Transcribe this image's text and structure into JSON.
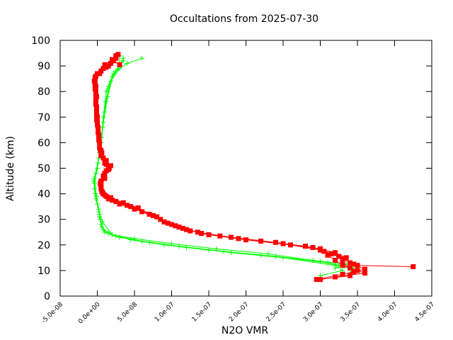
{
  "chart_data": {
    "type": "scatter",
    "title": "Occultations from 2025-07-30",
    "xlabel": "N2O VMR",
    "ylabel": "Altitude (km)",
    "xlim": [
      -5e-08,
      4.5e-07
    ],
    "ylim": [
      0,
      100
    ],
    "x_ticks": [
      -5e-08,
      0,
      5e-08,
      1e-07,
      1.5e-07,
      2e-07,
      2.5e-07,
      3e-07,
      3.5e-07,
      4e-07,
      4.5e-07
    ],
    "x_tick_labels": [
      "-5.0e-08",
      "0.0e+00",
      "5.0e-08",
      "1.0e-07",
      "1.5e-07",
      "2.0e-07",
      "2.5e-07",
      "3.0e-07",
      "3.5e-07",
      "4.0e-07",
      "4.5e-07"
    ],
    "y_ticks": [
      0,
      10,
      20,
      30,
      40,
      50,
      60,
      70,
      80,
      90,
      100
    ],
    "y_tick_labels": [
      "0",
      "10",
      "20",
      "30",
      "40",
      "50",
      "60",
      "70",
      "80",
      "90",
      "100"
    ],
    "grid": false,
    "series": [
      {
        "color": "#00ff00",
        "marker": "plus",
        "profiles": [
          [
            [
              3e-07,
              8
            ],
            [
              3.3e-07,
              10
            ],
            [
              3.2e-07,
              12
            ],
            [
              2.5e-07,
              15
            ],
            [
              1.8e-07,
              17
            ],
            [
              1.2e-07,
              19
            ],
            [
              7e-08,
              21
            ],
            [
              3e-08,
              23
            ],
            [
              1e-08,
              25
            ],
            [
              5e-09,
              28
            ],
            [
              3e-09,
              32
            ],
            [
              -2e-09,
              38
            ],
            [
              -4e-09,
              44
            ],
            [
              0.0,
              50
            ],
            [
              5e-09,
              60
            ],
            [
              8e-09,
              70
            ],
            [
              1.2e-08,
              80
            ],
            [
              2e-08,
              86
            ],
            [
              3e-08,
              90
            ],
            [
              3.5e-08,
              93
            ]
          ],
          [
            [
              3.4e-07,
              9
            ],
            [
              3.45e-07,
              11
            ],
            [
              3.1e-07,
              13
            ],
            [
              2.4e-07,
              15.5
            ],
            [
              1.7e-07,
              17.5
            ],
            [
              1.1e-07,
              19.5
            ],
            [
              6e-08,
              21.5
            ],
            [
              2.5e-08,
              23.5
            ],
            [
              8e-09,
              26
            ],
            [
              4e-09,
              30
            ],
            [
              2e-09,
              34
            ],
            [
              -3e-09,
              40
            ],
            [
              -5e-09,
              45
            ],
            [
              1e-09,
              52
            ],
            [
              6e-09,
              62
            ],
            [
              1e-08,
              72
            ],
            [
              1.5e-08,
              82
            ],
            [
              2.5e-08,
              88
            ],
            [
              4e-08,
              91
            ],
            [
              6e-08,
              93
            ]
          ],
          [
            [
              3.2e-07,
              11
            ],
            [
              3.35e-07,
              12.5
            ],
            [
              2.9e-07,
              14
            ],
            [
              2.2e-07,
              16
            ],
            [
              1.5e-07,
              18
            ],
            [
              9e-08,
              20
            ],
            [
              4.5e-08,
              22
            ],
            [
              1.5e-08,
              24.5
            ],
            [
              6e-09,
              27
            ],
            [
              3e-09,
              31
            ],
            [
              0.0,
              36
            ],
            [
              -4e-09,
              42
            ],
            [
              -2e-09,
              48
            ],
            [
              3e-09,
              56
            ],
            [
              7e-09,
              66
            ],
            [
              1.1e-08,
              76
            ],
            [
              1.8e-08,
              84
            ],
            [
              3e-08,
              89
            ],
            [
              3e-08,
              94
            ]
          ],
          [
            [
              3.5e-07,
              10
            ],
            [
              3.25e-07,
              12
            ],
            [
              3e-07,
              13.5
            ],
            [
              2.3e-07,
              16.5
            ],
            [
              1.6e-07,
              18.5
            ],
            [
              1e-07,
              20.5
            ],
            [
              5e-08,
              22.5
            ],
            [
              2e-08,
              24
            ],
            [
              7e-09,
              29
            ],
            [
              2e-09,
              33
            ],
            [
              -1e-09,
              39
            ],
            [
              -4e-09,
              46
            ],
            [
              2e-09,
              54
            ],
            [
              8e-09,
              68
            ],
            [
              1.4e-08,
              78
            ],
            [
              2.2e-08,
              87
            ],
            [
              3.5e-08,
              92
            ]
          ]
        ]
      },
      {
        "color": "#ff0000",
        "marker": "square",
        "profiles": [
          [
            [
              3e-07,
              6.5
            ],
            [
              3.4e-07,
              8
            ],
            [
              3.5e-07,
              10
            ],
            [
              3.3e-07,
              12
            ],
            [
              3.2e-07,
              14
            ],
            [
              3.1e-07,
              16
            ],
            [
              3e-07,
              18
            ],
            [
              2.6e-07,
              20
            ],
            [
              2e-07,
              22
            ],
            [
              1.5e-07,
              24
            ],
            [
              1.2e-07,
              26
            ],
            [
              1e-07,
              28
            ],
            [
              8e-08,
              31
            ],
            [
              5e-08,
              34
            ],
            [
              3e-08,
              36
            ],
            [
              1.5e-08,
              38
            ],
            [
              8e-09,
              40
            ],
            [
              5e-09,
              42
            ],
            [
              5e-09,
              45
            ],
            [
              1e-08,
              48
            ],
            [
              1.5e-08,
              50
            ],
            [
              1e-08,
              52
            ],
            [
              5e-09,
              55
            ],
            [
              3e-09,
              58
            ],
            [
              2e-09,
              62
            ],
            [
              1e-09,
              66
            ],
            [
              0.0,
              70
            ],
            [
              -1e-09,
              74
            ],
            [
              -1e-09,
              78
            ],
            [
              -2e-09,
              82
            ],
            [
              -3e-09,
              85
            ],
            [
              5e-09,
              88
            ],
            [
              1.5e-08,
              90
            ],
            [
              2e-08,
              92
            ],
            [
              2.5e-08,
              94
            ]
          ],
          [
            [
              3.2e-07,
              7.5
            ],
            [
              3.6e-07,
              9
            ],
            [
              3.4e-07,
              11
            ],
            [
              3.3e-07,
              13
            ],
            [
              3.35e-07,
              15
            ],
            [
              3.2e-07,
              17
            ],
            [
              2.9e-07,
              19
            ],
            [
              2.4e-07,
              21
            ],
            [
              1.8e-07,
              23
            ],
            [
              1.35e-07,
              25
            ],
            [
              1.1e-07,
              27
            ],
            [
              9e-08,
              29
            ],
            [
              7e-08,
              32
            ],
            [
              4.5e-08,
              35
            ],
            [
              2.5e-08,
              37
            ],
            [
              1.2e-08,
              39
            ],
            [
              6e-09,
              41
            ],
            [
              4e-09,
              44
            ],
            [
              8e-09,
              47
            ],
            [
              1.2e-08,
              49
            ],
            [
              1.8e-08,
              51
            ],
            [
              1.2e-08,
              53
            ],
            [
              6e-09,
              56
            ],
            [
              3e-09,
              60
            ],
            [
              1e-09,
              64
            ],
            [
              0.0,
              68
            ],
            [
              -1e-09,
              72
            ],
            [
              -2e-09,
              76
            ],
            [
              -2e-09,
              80
            ],
            [
              -4e-09,
              84
            ],
            [
              -2e-09,
              86
            ],
            [
              8e-09,
              89
            ],
            [
              1.8e-08,
              91
            ],
            [
              2.5e-08,
              93
            ]
          ],
          [
            [
              4.25e-07,
              11.5
            ],
            [
              3.5e-07,
              12
            ],
            [
              3.4e-07,
              13
            ],
            [
              3.25e-07,
              15.5
            ],
            [
              3.05e-07,
              17.5
            ],
            [
              2.8e-07,
              19.5
            ],
            [
              2.2e-07,
              21.5
            ],
            [
              1.65e-07,
              23.5
            ],
            [
              1.25e-07,
              25.5
            ],
            [
              1.05e-07,
              27.5
            ],
            [
              8.5e-08,
              30
            ],
            [
              6e-08,
              33
            ],
            [
              4e-08,
              35.5
            ],
            [
              2e-08,
              37.5
            ],
            [
              1e-08,
              39.5
            ],
            [
              5e-09,
              43
            ],
            [
              1e-08,
              46
            ],
            [
              1.5e-08,
              49.5
            ],
            [
              1.2e-08,
              51.5
            ],
            [
              8e-09,
              54
            ],
            [
              4e-09,
              57
            ],
            [
              2e-09,
              61
            ],
            [
              1e-09,
              65
            ],
            [
              -1e-09,
              69
            ],
            [
              -1e-09,
              73
            ],
            [
              -2e-09,
              77
            ],
            [
              -3e-09,
              81
            ],
            [
              -3e-09,
              85.5
            ],
            [
              3e-09,
              87
            ],
            [
              1.2e-08,
              89.5
            ],
            [
              2.2e-08,
              92
            ],
            [
              3e-08,
              90.5
            ]
          ],
          [
            [
              2.95e-07,
              6.5
            ],
            [
              3.3e-07,
              8.5
            ],
            [
              3.45e-07,
              9.5
            ],
            [
              3.6e-07,
              10.5
            ],
            [
              3.45e-07,
              12.5
            ],
            [
              3.3e-07,
              14.5
            ],
            [
              3.15e-07,
              16.5
            ],
            [
              3e-07,
              18.5
            ],
            [
              2.5e-07,
              20.5
            ],
            [
              1.9e-07,
              22.5
            ],
            [
              1.4e-07,
              24.5
            ],
            [
              1.15e-07,
              26.5
            ],
            [
              9.5e-08,
              28.5
            ],
            [
              7.5e-08,
              31.5
            ],
            [
              5.5e-08,
              34.5
            ],
            [
              3.5e-08,
              36.5
            ],
            [
              1.8e-08,
              38.5
            ],
            [
              7e-09,
              40.5
            ],
            [
              5e-09,
              43.5
            ],
            [
              9e-09,
              46.5
            ],
            [
              1.6e-08,
              50
            ],
            [
              1e-08,
              52.5
            ],
            [
              5e-09,
              57
            ],
            [
              2e-09,
              63
            ],
            [
              0.0,
              67
            ],
            [
              -1e-09,
              71
            ],
            [
              -2e-09,
              75
            ],
            [
              -2e-09,
              79
            ],
            [
              -3e-09,
              83
            ],
            [
              0.0,
              87
            ],
            [
              1e-08,
              90.5
            ],
            [
              2e-08,
              92.5
            ],
            [
              2.8e-08,
              94.5
            ]
          ]
        ]
      }
    ]
  }
}
